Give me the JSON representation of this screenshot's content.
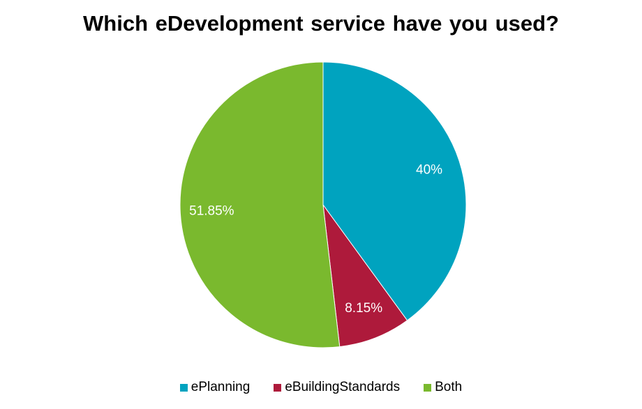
{
  "chart_data": {
    "type": "pie",
    "title": "Which eDevelopment service have you used?",
    "categories": [
      "ePlanning",
      "eBuildingStandards",
      "Both"
    ],
    "values": [
      40,
      8.15,
      51.85
    ],
    "data_labels": [
      "40%",
      "8.15%",
      "51.85%"
    ],
    "colors": [
      "#00A3BF",
      "#AE1A3B",
      "#7AB92E"
    ],
    "legend_position": "bottom",
    "start_angle": "12 o'clock",
    "direction": "clockwise"
  }
}
